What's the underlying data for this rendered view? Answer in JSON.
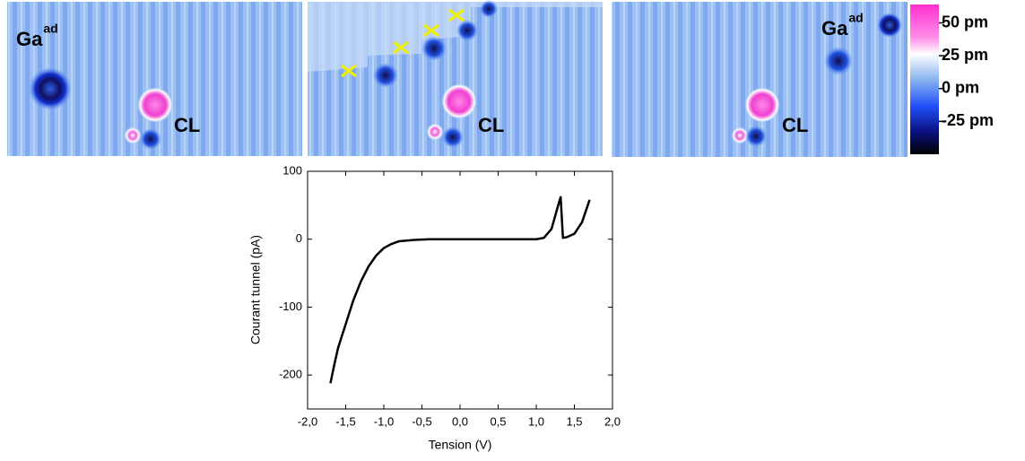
{
  "images": [
    {
      "labels": [
        {
          "text": "Ga",
          "sup": "ad"
        },
        {
          "text": "CL"
        }
      ]
    },
    {
      "labels": [
        {
          "text": "CL"
        }
      ]
    },
    {
      "labels": [
        {
          "text": "Ga",
          "sup": "ad"
        },
        {
          "text": "CL"
        }
      ]
    }
  ],
  "colorbar": {
    "lim": [
      -50,
      64
    ],
    "ticks": [
      {
        "value": 50,
        "label": "50 pm"
      },
      {
        "value": 25,
        "label": "25 pm"
      },
      {
        "value": 0,
        "label": "0 pm"
      },
      {
        "value": -25,
        "label": "-25 pm"
      }
    ]
  },
  "chart_data": {
    "type": "line",
    "x_label": "Tension (V)",
    "y_label": "Courant tunnel (pA)",
    "x": [
      -1.7,
      -1.65,
      -1.6,
      -1.5,
      -1.4,
      -1.3,
      -1.2,
      -1.1,
      -1.0,
      -0.9,
      -0.8,
      -0.6,
      -0.4,
      0,
      0.5,
      1.0,
      1.1,
      1.2,
      1.3,
      1.32,
      1.35,
      1.4,
      1.5,
      1.6,
      1.7
    ],
    "values": [
      -212,
      -185,
      -160,
      -125,
      -90,
      -62,
      -40,
      -24,
      -13,
      -7,
      -3,
      -1,
      0,
      0,
      0,
      0,
      2,
      15,
      55,
      62,
      2,
      3,
      8,
      25,
      58
    ],
    "color": "#000000",
    "xlim": [
      -2,
      2
    ],
    "ylim": [
      -250,
      100
    ],
    "xticks": [
      {
        "value": -2,
        "label": "-2,0"
      },
      {
        "value": -1.5,
        "label": "-1,5"
      },
      {
        "value": -1,
        "label": "-1,0"
      },
      {
        "value": -0.5,
        "label": "-0,5"
      },
      {
        "value": 0,
        "label": "0,0"
      },
      {
        "value": 0.5,
        "label": "0,5"
      },
      {
        "value": 1,
        "label": "1,0"
      },
      {
        "value": 1.5,
        "label": "1,5"
      },
      {
        "value": 2,
        "label": "2,0"
      }
    ],
    "yticks": [
      100,
      0,
      -100,
      -200
    ]
  }
}
